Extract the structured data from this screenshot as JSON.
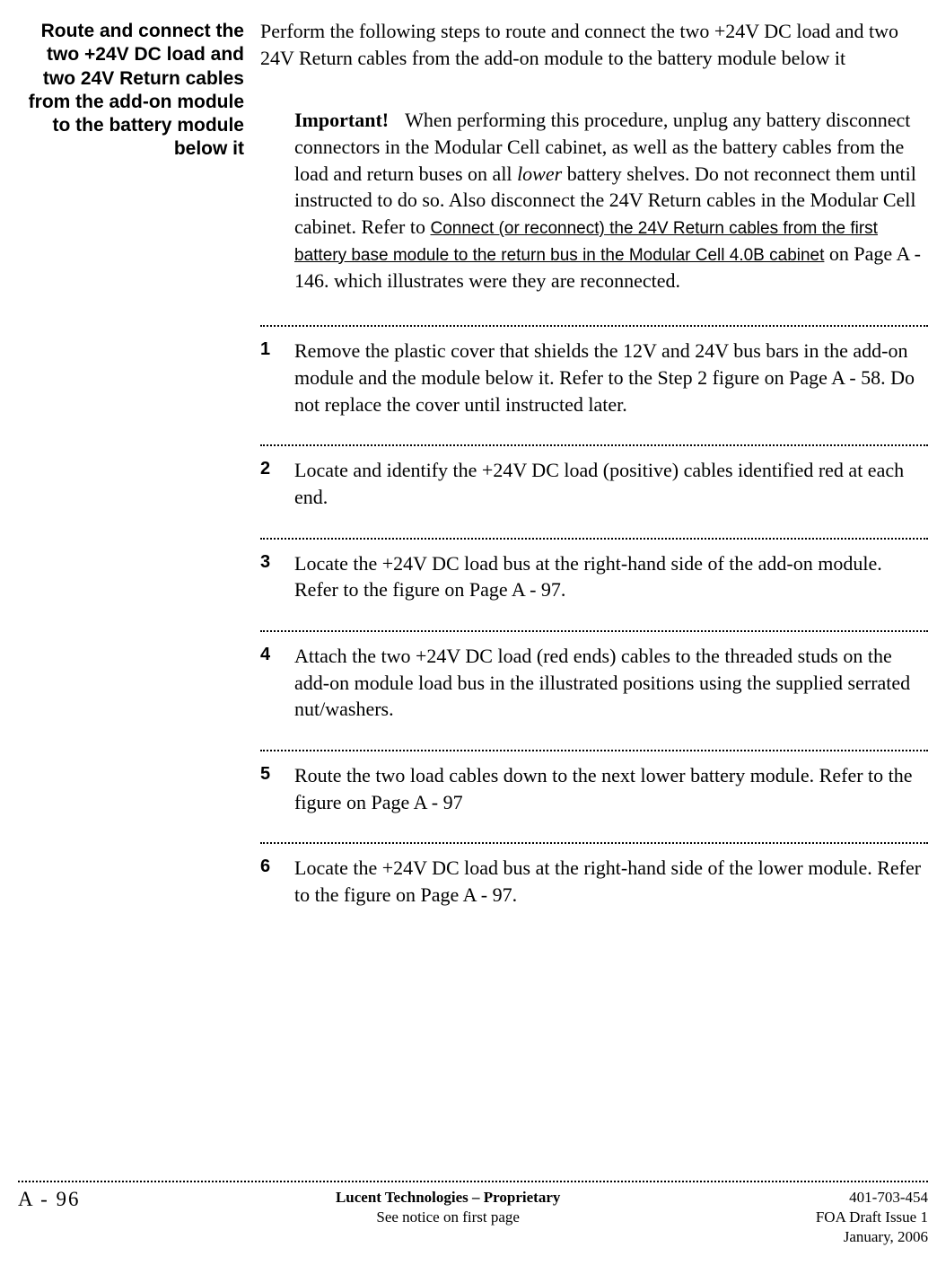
{
  "sideHeading": "Route and connect the two +24V DC load and two 24V Return cables from the add-on module to the battery module below it",
  "intro": "Perform the following steps to route and connect the two +24V DC load and two 24V Return cables from the add-on module to the battery module below it",
  "important": {
    "label": "Important!",
    "pre": "When performing this procedure, unplug any battery disconnect connectors in the Modular Cell cabinet, as well as the battery cables from the load and return buses on all ",
    "italic": "lower",
    "mid": " battery shelves. Do not reconnect them until instructed to do so. Also disconnect the 24V Return cables in the Modular Cell cabinet. Refer to ",
    "xref": "Connect (or reconnect) the 24V Return cables from the first battery base module to the return bus in the Modular Cell 4.0B cabinet",
    "post": " on Page  A - 146. which illustrates were they are reconnected."
  },
  "steps": [
    {
      "n": "1",
      "t": "Remove the plastic cover that shields the 12V and 24V bus bars in the add-on module and the module below it. Refer to the Step 2 figure on Page  A - 58. Do not replace the cover until instructed later."
    },
    {
      "n": "2",
      "t": "Locate and identify the +24V DC load (positive) cables identified red at each end."
    },
    {
      "n": "3",
      "t": "Locate the +24V DC load bus at the right-hand side of the add-on module. Refer to the figure on Page A - 97."
    },
    {
      "n": "4",
      "t": "Attach the two +24V DC load (red ends) cables to the threaded studs on the add-on module load bus in the illustrated positions using the supplied serrated nut/washers."
    },
    {
      "n": "5",
      "t": "Route the two load cables down to the next lower battery module. Refer to the figure on Page A - 97"
    },
    {
      "n": "6",
      "t": "Locate the +24V DC load bus at the right-hand side of the lower module. Refer to the figure on Page A - 97."
    }
  ],
  "footer": {
    "pageLabel": "A -  96",
    "centerBold": "Lucent Technologies – Proprietary",
    "centerPlain": "See notice on first page",
    "right1": "401-703-454",
    "right2": "FOA Draft Issue 1",
    "right3": "January, 2006"
  },
  "colors": {
    "text": "#000000",
    "background": "#ffffff"
  },
  "typography": {
    "body_family": "Times New Roman",
    "body_size_pt": 16,
    "heading_family": "Arial",
    "heading_size_pt": 16,
    "heading_weight": "bold",
    "stepnum_family": "Arial",
    "stepnum_weight": "bold",
    "xref_family": "Arial",
    "xref_decoration": "underline"
  }
}
